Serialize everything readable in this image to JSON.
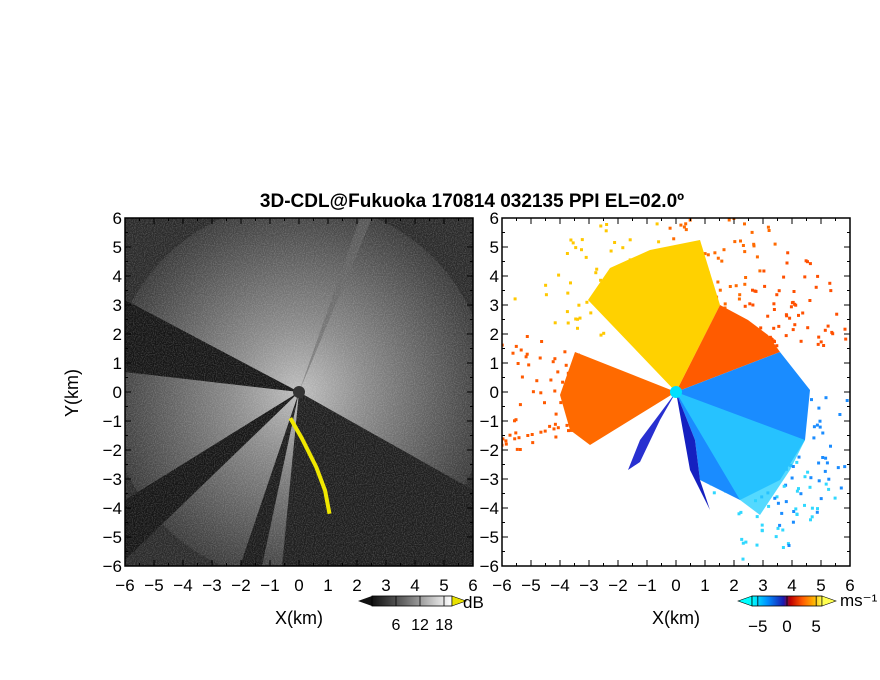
{
  "chart_data": [
    {
      "type": "heatmap",
      "title": "3D-CDL@Fukuoka 170814 032135 PPI EL=02.0º",
      "panel": "reflectivity",
      "xlabel": "X(km)",
      "ylabel": "Y(km)",
      "xlim": [
        -6,
        6
      ],
      "ylim": [
        -6,
        6
      ],
      "x_ticks": [
        "−6",
        "−5",
        "−4",
        "−3",
        "−2",
        "−1",
        "0",
        "1",
        "2",
        "3",
        "4",
        "5",
        "6"
      ],
      "y_ticks": [
        "−6",
        "−5",
        "−4",
        "−3",
        "−2",
        "−1",
        "0",
        "1",
        "2",
        "3",
        "4",
        "5",
        "6"
      ],
      "colorbar": {
        "unit": "dB",
        "tick_labels": [
          "6",
          "12",
          "18"
        ],
        "range": [
          0,
          20
        ],
        "colors": [
          "#111111",
          "#666666",
          "#bbbbbb",
          "#ffffff",
          "#e8e000"
        ]
      },
      "features": [
        {
          "name": "yellow echo line",
          "x": [
            -0.3,
            0.1,
            0.6,
            0.9,
            1.05
          ],
          "y": [
            -0.9,
            -1.6,
            -2.6,
            -3.4,
            -4.2
          ]
        }
      ]
    },
    {
      "type": "heatmap",
      "panel": "doppler velocity",
      "xlabel": "X(km)",
      "xlim": [
        -6,
        6
      ],
      "ylim": [
        -6,
        6
      ],
      "x_ticks": [
        "−6",
        "−5",
        "−4",
        "−3",
        "−2",
        "−1",
        "0",
        "1",
        "2",
        "3",
        "4",
        "5",
        "6"
      ],
      "y_ticks": [
        "−6",
        "−5",
        "−4",
        "−3",
        "−2",
        "−1",
        "0",
        "1",
        "2",
        "3",
        "4",
        "5",
        "6"
      ],
      "colorbar": {
        "unit": "ms⁻¹",
        "tick_labels": [
          "−5",
          "0",
          "5"
        ],
        "range": [
          -6,
          6
        ],
        "colors": [
          "#00ffff",
          "#0080ff",
          "#1a1ab0",
          "#c00000",
          "#ff5000",
          "#ffa000",
          "#ffff40"
        ]
      }
    }
  ]
}
